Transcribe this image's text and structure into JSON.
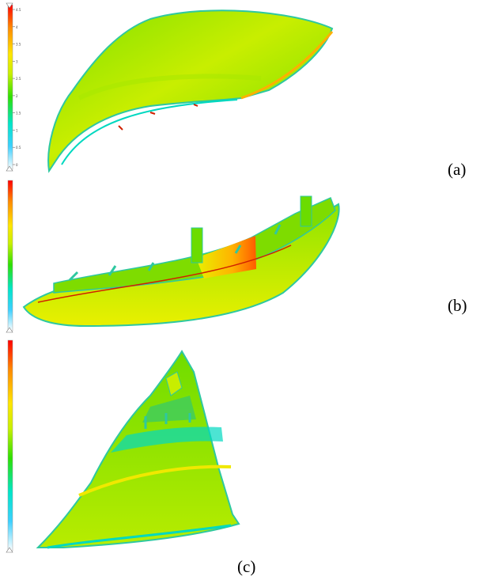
{
  "figure": {
    "panels": [
      {
        "id": "a",
        "label": "(a)"
      },
      {
        "id": "b",
        "label": "(b)"
      },
      {
        "id": "c",
        "label": "(c)"
      }
    ],
    "colormap": [
      "#ff0000",
      "#ff8a00",
      "#ffe600",
      "#c8f000",
      "#2ee000",
      "#00e6c8",
      "#3cd0ff",
      "#ffffff"
    ],
    "scale_a_ticks": [
      "4.5",
      "4",
      "3.5",
      "3",
      "2.5",
      "2",
      "1.5",
      "1",
      "0.5",
      "0"
    ]
  }
}
